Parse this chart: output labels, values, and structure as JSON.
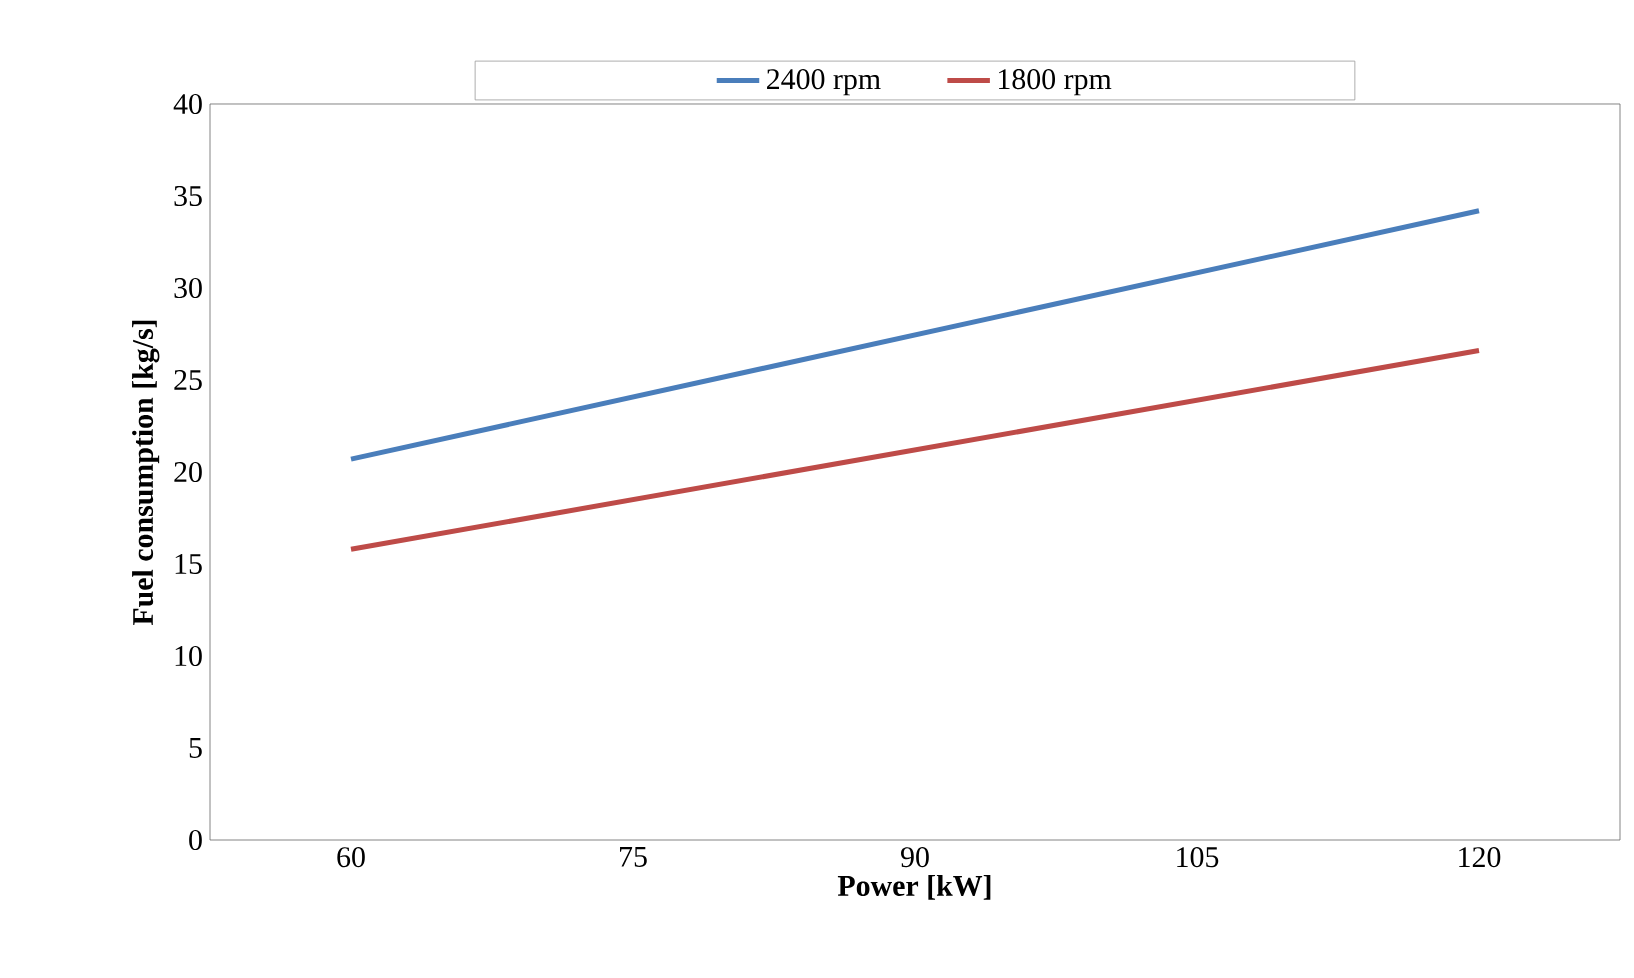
{
  "chart_data": {
    "type": "line",
    "xlabel": "Power [kW]",
    "ylabel": "Fuel consumption [kg/s]",
    "x": [
      60,
      120
    ],
    "series": [
      {
        "name": "2400 rpm",
        "color": "#4a7ebb",
        "values": [
          20.7,
          34.2
        ]
      },
      {
        "name": "1800 rpm",
        "color": "#be4b48",
        "values": [
          15.8,
          26.6
        ]
      }
    ],
    "xlim": [
      52.5,
      127.5
    ],
    "xticks": [
      60,
      75,
      90,
      105,
      120
    ],
    "ylim": [
      0,
      40
    ],
    "yticks": [
      0,
      5,
      10,
      15,
      20,
      25,
      30,
      35,
      40
    ],
    "grid": false,
    "legend": "top",
    "marker": "none",
    "line_style": "solid"
  }
}
